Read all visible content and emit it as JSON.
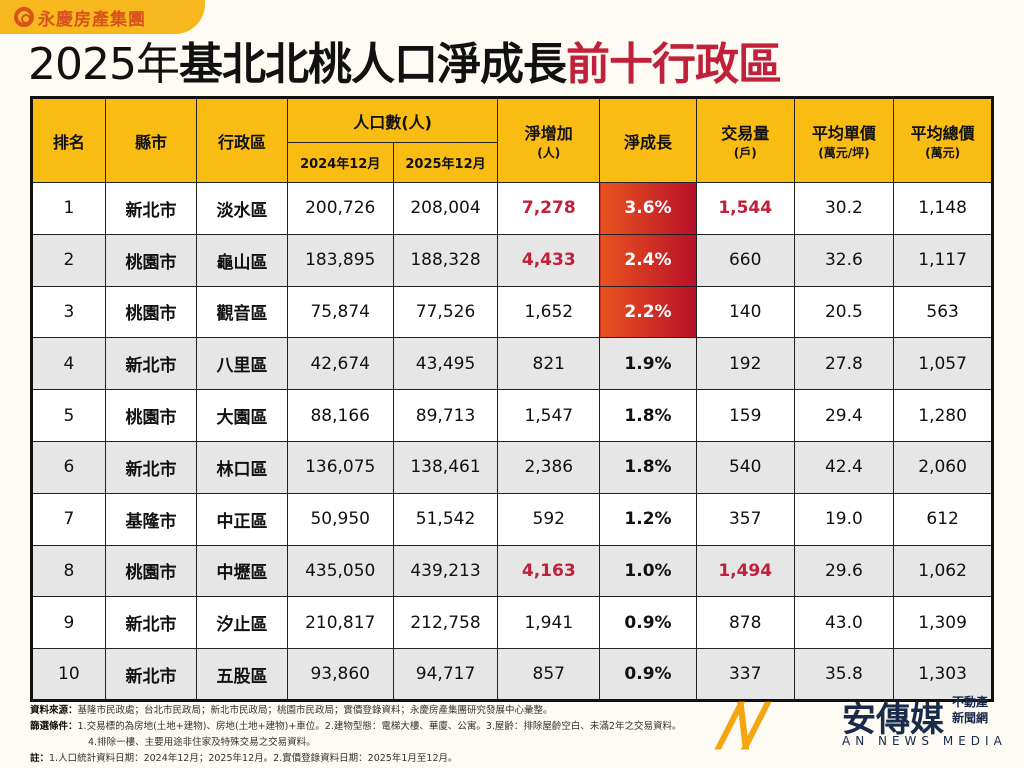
{
  "brand": "永慶房產集團",
  "title": {
    "year": "2025年",
    "main": "基北北桃人口淨成長",
    "highlight": "前十行政區"
  },
  "headers": {
    "rank": "排名",
    "city": "縣市",
    "district": "行政區",
    "population": "人口數(人)",
    "pop_2024": "2024年12月",
    "pop_2025": "2025年12月",
    "net_increase": "淨增加",
    "net_increase_unit": "(人)",
    "net_growth": "淨成長",
    "transactions": "交易量",
    "transactions_unit": "(戶)",
    "avg_unit_price": "平均單價",
    "avg_unit_price_unit": "(萬元/坪)",
    "avg_total_price": "平均總價",
    "avg_total_price_unit": "(萬元)"
  },
  "rows": [
    {
      "rank": "1",
      "city": "新北市",
      "district": "淡水區",
      "pop_2024": "200,726",
      "pop_2025": "208,004",
      "net_increase": "7,278",
      "net_growth": "3.6%",
      "transactions": "1,544",
      "unit_price": "30.2",
      "total_price": "1,148",
      "inc_red": true,
      "tx_red": true,
      "hot": true
    },
    {
      "rank": "2",
      "city": "桃園市",
      "district": "龜山區",
      "pop_2024": "183,895",
      "pop_2025": "188,328",
      "net_increase": "4,433",
      "net_growth": "2.4%",
      "transactions": "660",
      "unit_price": "32.6",
      "total_price": "1,117",
      "inc_red": true,
      "tx_red": false,
      "hot": true
    },
    {
      "rank": "3",
      "city": "桃園市",
      "district": "觀音區",
      "pop_2024": "75,874",
      "pop_2025": "77,526",
      "net_increase": "1,652",
      "net_growth": "2.2%",
      "transactions": "140",
      "unit_price": "20.5",
      "total_price": "563",
      "inc_red": false,
      "tx_red": false,
      "hot": true
    },
    {
      "rank": "4",
      "city": "新北市",
      "district": "八里區",
      "pop_2024": "42,674",
      "pop_2025": "43,495",
      "net_increase": "821",
      "net_growth": "1.9%",
      "transactions": "192",
      "unit_price": "27.8",
      "total_price": "1,057",
      "inc_red": false,
      "tx_red": false,
      "hot": false
    },
    {
      "rank": "5",
      "city": "桃園市",
      "district": "大園區",
      "pop_2024": "88,166",
      "pop_2025": "89,713",
      "net_increase": "1,547",
      "net_growth": "1.8%",
      "transactions": "159",
      "unit_price": "29.4",
      "total_price": "1,280",
      "inc_red": false,
      "tx_red": false,
      "hot": false
    },
    {
      "rank": "6",
      "city": "新北市",
      "district": "林口區",
      "pop_2024": "136,075",
      "pop_2025": "138,461",
      "net_increase": "2,386",
      "net_growth": "1.8%",
      "transactions": "540",
      "unit_price": "42.4",
      "total_price": "2,060",
      "inc_red": false,
      "tx_red": false,
      "hot": false
    },
    {
      "rank": "7",
      "city": "基隆市",
      "district": "中正區",
      "pop_2024": "50,950",
      "pop_2025": "51,542",
      "net_increase": "592",
      "net_growth": "1.2%",
      "transactions": "357",
      "unit_price": "19.0",
      "total_price": "612",
      "inc_red": false,
      "tx_red": false,
      "hot": false
    },
    {
      "rank": "8",
      "city": "桃園市",
      "district": "中壢區",
      "pop_2024": "435,050",
      "pop_2025": "439,213",
      "net_increase": "4,163",
      "net_growth": "1.0%",
      "transactions": "1,494",
      "unit_price": "29.6",
      "total_price": "1,062",
      "inc_red": true,
      "tx_red": true,
      "hot": false
    },
    {
      "rank": "9",
      "city": "新北市",
      "district": "汐止區",
      "pop_2024": "210,817",
      "pop_2025": "212,758",
      "net_increase": "1,941",
      "net_growth": "0.9%",
      "transactions": "878",
      "unit_price": "43.0",
      "total_price": "1,309",
      "inc_red": false,
      "tx_red": false,
      "hot": false
    },
    {
      "rank": "10",
      "city": "新北市",
      "district": "五股區",
      "pop_2024": "93,860",
      "pop_2025": "94,717",
      "net_increase": "857",
      "net_growth": "0.9%",
      "transactions": "337",
      "unit_price": "35.8",
      "total_price": "1,303",
      "inc_red": false,
      "tx_red": false,
      "hot": false
    }
  ],
  "notes": {
    "source_label": "資料來源：",
    "source": "基隆市民政處；台北市民政局；新北市民政局；桃園市民政局；實價登錄資料；永慶房產集團研究發展中心彙整。",
    "filter_label": "篩選條件：",
    "filter1": "1.交易標的為房地(土地+建物)、房地(土地+建物)+車位。2.建物型態：電梯大樓、華廈、公寓。3.屋齡：排除屋齡空白、未滿2年之交易資料。",
    "filter2": "4.排除一樓、主要用途非住家及特殊交易之交易資料。",
    "note_label": "註：",
    "note": "1.人口統計資料日期：2024年12月；2025年12月。2.實價登錄資料日期：2025年1月至12月。"
  },
  "watermark": {
    "name": "安傳媒",
    "tag1": "不動產",
    "tag2": "新聞網",
    "en": "AN NEWS MEDIA"
  },
  "colors": {
    "header": "#f8bc12",
    "highlight_red": "#c0203a",
    "brand_orange": "#d9531e"
  }
}
